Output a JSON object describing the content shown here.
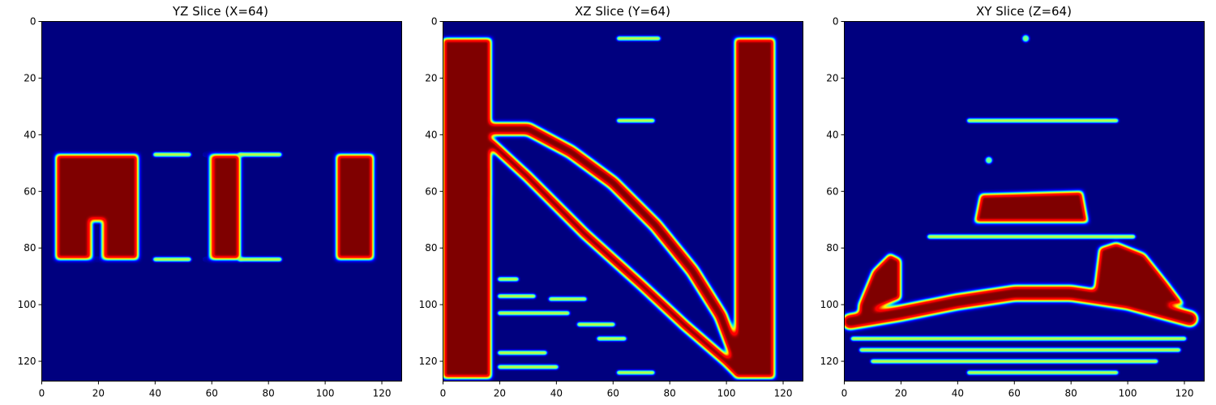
{
  "chart_data": [
    {
      "type": "heatmap",
      "title": "YZ Slice (X=64)",
      "colormap": "jet",
      "xlim": [
        0,
        127
      ],
      "ylim": [
        127,
        0
      ],
      "xticks": [
        0,
        20,
        40,
        60,
        80,
        100,
        120
      ],
      "yticks": [
        0,
        20,
        40,
        60,
        80,
        100,
        120
      ],
      "grid": false,
      "high_regions": [
        {
          "shape": "rect",
          "x": [
            5,
            34
          ],
          "y": [
            47,
            84
          ]
        },
        {
          "shape": "rect",
          "x": [
            57,
            70
          ],
          "y": [
            47,
            84
          ]
        },
        {
          "shape": "rect",
          "x": [
            104,
            117
          ],
          "y": [
            47,
            84
          ]
        }
      ],
      "background_regions": [
        {
          "shape": "rect",
          "x": [
            17,
            22
          ],
          "y": [
            70,
            84
          ]
        },
        {
          "shape": "rect",
          "x": [
            54,
            60
          ],
          "y": [
            47,
            84
          ]
        }
      ],
      "faint_streaks": [
        {
          "x": [
            40,
            52
          ],
          "y": 47
        },
        {
          "x": [
            70,
            84
          ],
          "y": 47
        },
        {
          "x": [
            40,
            52
          ],
          "y": 84
        },
        {
          "x": [
            70,
            84
          ],
          "y": 84
        }
      ]
    },
    {
      "type": "heatmap",
      "title": "XZ Slice (Y=64)",
      "colormap": "jet",
      "xlim": [
        0,
        127
      ],
      "ylim": [
        127,
        0
      ],
      "xticks": [
        0,
        20,
        40,
        60,
        80,
        100,
        120
      ],
      "yticks": [
        0,
        20,
        40,
        60,
        80,
        100,
        120
      ],
      "grid": false,
      "high_regions": [
        {
          "shape": "rect",
          "x": [
            0,
            17
          ],
          "y": [
            6,
            126
          ]
        },
        {
          "shape": "rect",
          "x": [
            103,
            117
          ],
          "y": [
            6,
            126
          ]
        },
        {
          "shape": "polygon",
          "points": [
            [
              0,
              38
            ],
            [
              5,
              42
            ],
            [
              10,
              47
            ],
            [
              17,
              52
            ],
            [
              17,
              62
            ],
            [
              10,
              52
            ],
            [
              4,
              47
            ],
            [
              0,
              43
            ]
          ]
        },
        {
          "shape": "band",
          "points": [
            [
              17,
              38
            ],
            [
              30,
              38
            ],
            [
              45,
              46
            ],
            [
              60,
              57
            ],
            [
              75,
              72
            ],
            [
              88,
              88
            ],
            [
              98,
              104
            ],
            [
              104,
              120
            ]
          ],
          "width": 4.5
        },
        {
          "shape": "band",
          "points": [
            [
              17,
              43
            ],
            [
              30,
              55
            ],
            [
              50,
              75
            ],
            [
              70,
              93
            ],
            [
              85,
              107
            ],
            [
              100,
              120
            ],
            [
              104,
              124
            ]
          ],
          "width": 3.5
        }
      ],
      "faint_streaks": [
        {
          "x": [
            62,
            76
          ],
          "y": 6
        },
        {
          "x": [
            62,
            74
          ],
          "y": 35
        },
        {
          "x": [
            20,
            26
          ],
          "y": 91
        },
        {
          "x": [
            20,
            32
          ],
          "y": 97
        },
        {
          "x": [
            38,
            50
          ],
          "y": 98
        },
        {
          "x": [
            20,
            44
          ],
          "y": 103
        },
        {
          "x": [
            48,
            60
          ],
          "y": 107
        },
        {
          "x": [
            55,
            64
          ],
          "y": 112
        },
        {
          "x": [
            20,
            36
          ],
          "y": 117
        },
        {
          "x": [
            20,
            40
          ],
          "y": 122
        },
        {
          "x": [
            62,
            74
          ],
          "y": 124
        }
      ]
    },
    {
      "type": "heatmap",
      "title": "XY Slice (Z=64)",
      "colormap": "jet",
      "xlim": [
        0,
        127
      ],
      "ylim": [
        127,
        0
      ],
      "xticks": [
        0,
        20,
        40,
        60,
        80,
        100,
        120
      ],
      "yticks": [
        0,
        20,
        40,
        60,
        80,
        100,
        120
      ],
      "grid": false,
      "high_regions": [
        {
          "shape": "polygon",
          "points": [
            [
              48,
              61
            ],
            [
              84,
              60
            ],
            [
              86,
              71
            ],
            [
              46,
              71
            ]
          ]
        },
        {
          "shape": "band",
          "points": [
            [
              2,
              106
            ],
            [
              20,
              103
            ],
            [
              40,
              99
            ],
            [
              60,
              96
            ],
            [
              80,
              96
            ],
            [
              100,
              99
            ],
            [
              122,
              105
            ]
          ],
          "width": 5.5
        },
        {
          "shape": "polygon",
          "points": [
            [
              5,
              100
            ],
            [
              10,
              88
            ],
            [
              16,
              82
            ],
            [
              20,
              84
            ],
            [
              20,
              98
            ],
            [
              5,
              104
            ]
          ]
        },
        {
          "shape": "polygon",
          "points": [
            [
              88,
              96
            ],
            [
              90,
              80
            ],
            [
              96,
              78
            ],
            [
              106,
              82
            ],
            [
              114,
              92
            ],
            [
              120,
              100
            ],
            [
              100,
              100
            ]
          ]
        }
      ],
      "faint_streaks": [
        {
          "x": [
            44,
            96
          ],
          "y": 35
        },
        {
          "x": [
            44,
            96
          ],
          "y": 124
        },
        {
          "x": [
            3,
            120
          ],
          "y": 112
        },
        {
          "x": [
            6,
            118
          ],
          "y": 116
        },
        {
          "x": [
            10,
            110
          ],
          "y": 120
        },
        {
          "x": [
            30,
            102
          ],
          "y": 76
        }
      ],
      "faint_points": [
        [
          64,
          6
        ],
        [
          51,
          49
        ]
      ]
    }
  ]
}
